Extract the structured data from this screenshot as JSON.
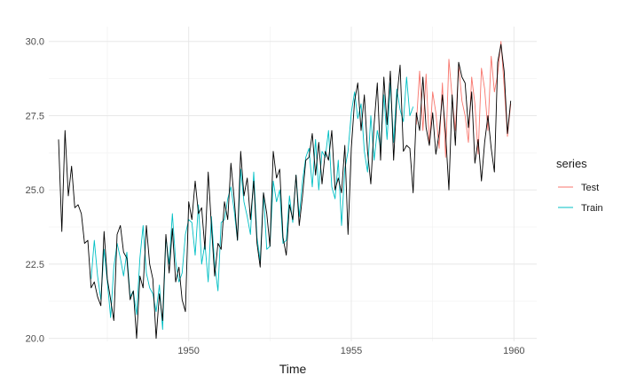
{
  "chart_data": {
    "type": "line",
    "xlabel": "Time",
    "ylabel": "",
    "xlim": [
      1945.7,
      1960.7
    ],
    "ylim": [
      19.9,
      30.5
    ],
    "x_ticks": [
      1950,
      1955,
      1960
    ],
    "y_ticks": [
      20.0,
      22.5,
      25.0,
      27.5,
      30.0
    ],
    "x_tick_labels": [
      "1950",
      "1955",
      "1960"
    ],
    "y_tick_labels": [
      "20.0",
      "22.5",
      "25.0",
      "27.5",
      "30.0"
    ],
    "grid": true,
    "legend_title": "series",
    "legend_position": "right",
    "series": [
      {
        "name": "",
        "color": "#000000",
        "x": [
          1946.0,
          1946.1,
          1946.2,
          1946.3,
          1946.4,
          1946.5,
          1946.6,
          1946.7,
          1946.8,
          1946.9,
          1947.0,
          1947.1,
          1947.2,
          1947.3,
          1947.4,
          1947.5,
          1947.6,
          1947.7,
          1947.8,
          1947.9,
          1948.0,
          1948.1,
          1948.2,
          1948.3,
          1948.4,
          1948.5,
          1948.6,
          1948.7,
          1948.8,
          1948.9,
          1949.0,
          1949.1,
          1949.2,
          1949.3,
          1949.4,
          1949.5,
          1949.6,
          1949.7,
          1949.8,
          1949.9,
          1950.0,
          1950.1,
          1950.2,
          1950.3,
          1950.4,
          1950.5,
          1950.6,
          1950.7,
          1950.8,
          1950.9,
          1951.0,
          1951.1,
          1951.2,
          1951.3,
          1951.4,
          1951.5,
          1951.6,
          1951.7,
          1951.8,
          1951.9,
          1952.0,
          1952.1,
          1952.2,
          1952.3,
          1952.4,
          1952.5,
          1952.6,
          1952.7,
          1952.8,
          1952.9,
          1953.0,
          1953.1,
          1953.2,
          1953.3,
          1953.4,
          1953.5,
          1953.6,
          1953.7,
          1953.8,
          1953.9,
          1954.0,
          1954.1,
          1954.2,
          1954.3,
          1954.4,
          1954.5,
          1954.6,
          1954.7,
          1954.8,
          1954.9,
          1955.0,
          1955.1,
          1955.2,
          1955.3,
          1955.4,
          1955.5,
          1955.6,
          1955.7,
          1955.8,
          1955.9,
          1956.0,
          1956.1,
          1956.2,
          1956.3,
          1956.4,
          1956.5,
          1956.6,
          1956.7,
          1956.8,
          1956.9,
          1957.0,
          1957.1,
          1957.2,
          1957.3,
          1957.4,
          1957.5,
          1957.6,
          1957.7,
          1957.8,
          1957.9,
          1958.0,
          1958.1,
          1958.2,
          1958.3,
          1958.4,
          1958.5,
          1958.6,
          1958.7,
          1958.8,
          1958.9,
          1959.0,
          1959.1,
          1959.2,
          1959.3,
          1959.4,
          1959.5,
          1959.6,
          1959.7,
          1959.8,
          1959.9
        ],
        "values": [
          26.7,
          23.6,
          27.0,
          24.8,
          25.8,
          24.4,
          24.5,
          24.2,
          23.2,
          23.3,
          21.7,
          21.9,
          21.4,
          21.1,
          23.6,
          22.0,
          21.3,
          20.6,
          23.5,
          23.8,
          22.9,
          22.7,
          21.3,
          21.6,
          20.0,
          22.1,
          21.7,
          23.8,
          22.5,
          22.0,
          20.0,
          21.5,
          20.6,
          23.5,
          22.2,
          23.7,
          21.9,
          22.4,
          21.3,
          20.9,
          24.6,
          24.0,
          25.3,
          24.2,
          24.4,
          23.0,
          25.6,
          23.8,
          22.1,
          23.2,
          23.0,
          24.6,
          24.0,
          25.9,
          24.7,
          23.3,
          26.3,
          24.8,
          25.4,
          24.0,
          25.3,
          23.2,
          22.4,
          24.9,
          24.2,
          23.1,
          26.3,
          25.4,
          25.7,
          23.4,
          22.8,
          24.5,
          24.0,
          25.5,
          23.8,
          24.8,
          26.0,
          26.1,
          26.9,
          25.5,
          26.6,
          25.2,
          26.3,
          26.0,
          27.0,
          25.0,
          25.4,
          24.9,
          26.5,
          23.5,
          26.4,
          28.0,
          28.6,
          27.0,
          28.2,
          26.3,
          25.2,
          27.2,
          28.6,
          26.0,
          28.8,
          27.2,
          29.0,
          26.0,
          28.1,
          29.2,
          26.3,
          26.5,
          26.4,
          24.9,
          27.6,
          27.0,
          28.8,
          27.1,
          26.5,
          27.6,
          26.2,
          26.9,
          28.2,
          26.9,
          25.0,
          28.2,
          26.5,
          29.3,
          28.8,
          28.6,
          27.1,
          28.3,
          25.9,
          26.7,
          25.3,
          26.6,
          27.5,
          26.4,
          25.6,
          29.3,
          29.9,
          29.0,
          26.9,
          28.0
        ]
      },
      {
        "name": "Train",
        "color": "#00BFC4",
        "x": [
          1947.0,
          1947.1,
          1947.2,
          1947.3,
          1947.4,
          1947.5,
          1947.6,
          1947.7,
          1947.8,
          1947.9,
          1948.0,
          1948.1,
          1948.2,
          1948.3,
          1948.4,
          1948.5,
          1948.6,
          1948.7,
          1948.8,
          1948.9,
          1949.0,
          1949.1,
          1949.2,
          1949.3,
          1949.4,
          1949.5,
          1949.6,
          1949.7,
          1949.8,
          1949.9,
          1950.0,
          1950.1,
          1950.2,
          1950.3,
          1950.4,
          1950.5,
          1950.6,
          1950.7,
          1950.8,
          1950.9,
          1951.0,
          1951.1,
          1951.2,
          1951.3,
          1951.4,
          1951.5,
          1951.6,
          1951.7,
          1951.8,
          1951.9,
          1952.0,
          1952.1,
          1952.2,
          1952.3,
          1952.4,
          1952.5,
          1952.6,
          1952.7,
          1952.8,
          1952.9,
          1953.0,
          1953.1,
          1953.2,
          1953.3,
          1953.4,
          1953.5,
          1953.6,
          1953.7,
          1953.8,
          1953.9,
          1954.0,
          1954.1,
          1954.2,
          1954.3,
          1954.4,
          1954.5,
          1954.6,
          1954.7,
          1954.8,
          1954.9,
          1955.0,
          1955.1,
          1955.2,
          1955.3,
          1955.4,
          1955.5,
          1955.6,
          1955.7,
          1955.8,
          1955.9,
          1956.0,
          1956.1,
          1956.2,
          1956.3,
          1956.4,
          1956.5,
          1956.6,
          1956.7,
          1956.8,
          1956.9
        ],
        "values": [
          22.0,
          23.3,
          22.1,
          21.3,
          23.0,
          21.9,
          20.7,
          22.4,
          23.2,
          22.7,
          22.1,
          22.9,
          21.4,
          21.6,
          20.8,
          22.7,
          23.8,
          22.2,
          21.7,
          21.5,
          20.9,
          21.8,
          20.3,
          23.4,
          22.5,
          24.2,
          22.6,
          21.9,
          22.2,
          23.5,
          24.0,
          23.9,
          22.8,
          24.5,
          22.5,
          23.2,
          21.9,
          24.1,
          22.5,
          21.6,
          23.9,
          24.0,
          24.7,
          25.1,
          24.3,
          23.3,
          25.7,
          24.6,
          24.1,
          23.5,
          25.6,
          23.4,
          22.6,
          24.9,
          23.0,
          23.1,
          25.3,
          24.6,
          25.0,
          23.2,
          23.3,
          24.8,
          23.9,
          25.5,
          24.1,
          25.3,
          26.1,
          26.4,
          25.1,
          26.7,
          25.0,
          26.3,
          26.1,
          27.0,
          25.1,
          24.7,
          26.0,
          23.8,
          25.7,
          26.3,
          27.6,
          28.3,
          27.4,
          27.9,
          26.3,
          25.6,
          27.5,
          26.0,
          27.0,
          26.4,
          28.2,
          26.7,
          28.6,
          26.6,
          28.4,
          27.7,
          27.3,
          28.8,
          27.5,
          27.8
        ]
      },
      {
        "name": "Test",
        "color": "#F8766D",
        "x": [
          1957.0,
          1957.1,
          1957.2,
          1957.3,
          1957.4,
          1957.5,
          1957.6,
          1957.7,
          1957.8,
          1957.9,
          1958.0,
          1958.1,
          1958.2,
          1958.3,
          1958.4,
          1958.5,
          1958.6,
          1958.7,
          1958.8,
          1958.9,
          1959.0,
          1959.1,
          1959.2,
          1959.3,
          1959.4,
          1959.5,
          1959.6,
          1959.7,
          1959.8,
          1959.9
        ],
        "values": [
          27.2,
          29.0,
          27.0,
          28.9,
          26.5,
          28.3,
          27.6,
          26.4,
          28.6,
          26.1,
          29.4,
          28.1,
          27.0,
          29.2,
          28.0,
          27.5,
          26.6,
          28.8,
          27.9,
          26.2,
          29.1,
          28.4,
          27.0,
          29.5,
          28.3,
          28.9,
          30.0,
          28.5,
          26.8,
          27.9
        ]
      }
    ]
  }
}
